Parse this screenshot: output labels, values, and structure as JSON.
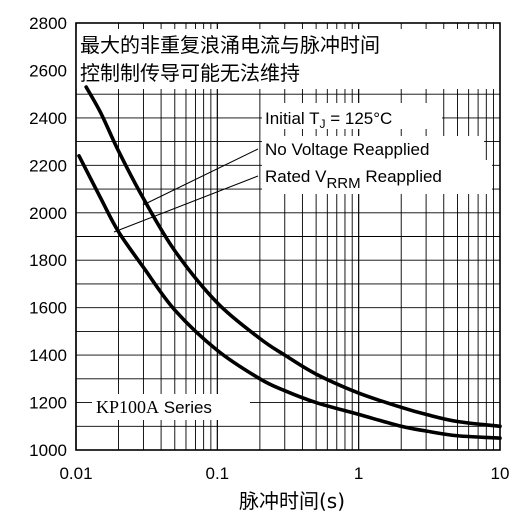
{
  "chart_data": {
    "type": "line",
    "title": "最大的非重复浪涌电流与脉冲时间",
    "subtitle": "控制制传导可能无法维持",
    "xlabel": "脉冲时间(s)",
    "ylabel": "",
    "x_scale": "log",
    "xlim": [
      0.01,
      10
    ],
    "ylim": [
      1000,
      2800
    ],
    "grid": true,
    "x_tick_labels": [
      "0.01",
      "0.1",
      "1",
      "10"
    ],
    "x_tick_values": [
      0.01,
      0.1,
      1,
      10
    ],
    "y_tick_values": [
      1000,
      1200,
      1400,
      1600,
      1800,
      2000,
      2200,
      2400,
      2600,
      2800
    ],
    "y_tick_labels": [
      "1000",
      "1200",
      "1400",
      "1600",
      "1800",
      "2000",
      "2200",
      "2400",
      "2600",
      "2800"
    ],
    "annotations": {
      "initial_tj": "Initial T",
      "initial_tj_sub": "J",
      "initial_tj_tail": " = 125°C",
      "no_voltage": "No Voltage Reapplied",
      "rated_prefix": "Rated V",
      "rated_sub": "RRM",
      "rated_suffix": " Reapplied",
      "series_name_a": "KP100A",
      "series_name_b": " Series"
    },
    "series": [
      {
        "x": [
          0.0118,
          0.015,
          0.02,
          0.03,
          0.05,
          0.1,
          0.2,
          0.3,
          0.5,
          1,
          2,
          3,
          5,
          10
        ],
        "y": [
          2530,
          2420,
          2260,
          2060,
          1840,
          1620,
          1470,
          1400,
          1320,
          1240,
          1180,
          1150,
          1120,
          1100
        ]
      },
      {
        "x": [
          0.0105,
          0.015,
          0.02,
          0.03,
          0.05,
          0.1,
          0.2,
          0.3,
          0.5,
          1,
          2,
          3,
          5,
          10
        ],
        "y": [
          2240,
          2060,
          1920,
          1770,
          1590,
          1420,
          1300,
          1250,
          1200,
          1150,
          1100,
          1080,
          1060,
          1050
        ]
      }
    ],
    "colors": {
      "curve": "#000000",
      "grid": "#000000",
      "background": "#ffffff"
    }
  }
}
